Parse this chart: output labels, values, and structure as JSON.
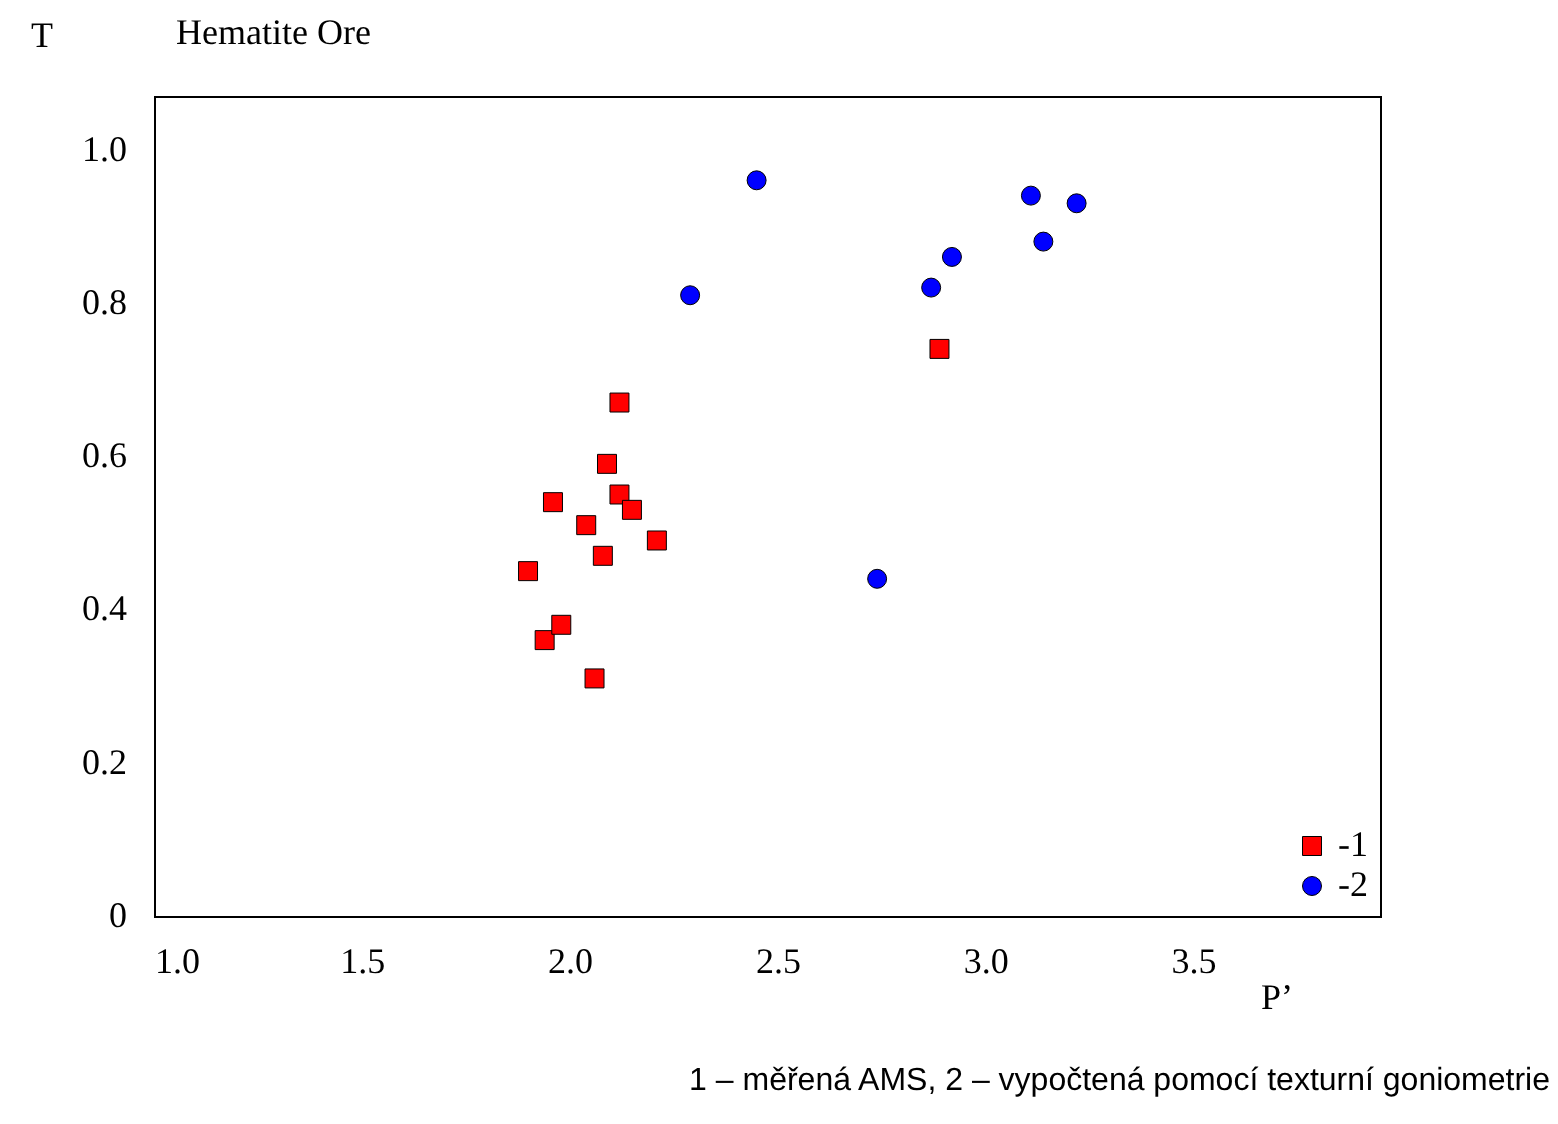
{
  "chart_data": {
    "type": "scatter",
    "title": "Hematite Ore",
    "xlabel": "P’",
    "ylabel": "T",
    "xlim": [
      1.0,
      3.95
    ],
    "ylim": [
      0,
      1.07
    ],
    "xticks": [
      {
        "value": 1,
        "label": "1.0"
      },
      1.5,
      {
        "value": 2,
        "label": "2.0"
      },
      2.5,
      {
        "value": 3,
        "label": "3.0"
      },
      3.5
    ],
    "yticks": [
      0,
      0.2,
      0.4,
      0.6,
      0.8,
      {
        "value": 1,
        "label": "1.0"
      }
    ],
    "grid": false,
    "legend": "bottom right",
    "series": [
      {
        "name": "-1",
        "color": "#ff0000",
        "marker": "square",
        "x": [
          1.9,
          1.94,
          1.96,
          1.98,
          2.04,
          2.06,
          2.08,
          2.09,
          2.12,
          2.12,
          2.15,
          2.21,
          2.89
        ],
        "values": [
          0.45,
          0.36,
          0.54,
          0.38,
          0.51,
          0.31,
          0.47,
          0.59,
          0.55,
          0.67,
          0.53,
          0.49,
          0.74
        ]
      },
      {
        "name": "-2",
        "color": "#0000ff",
        "marker": "circle",
        "x": [
          2.29,
          2.45,
          2.74,
          2.87,
          2.92,
          3.11,
          3.14,
          3.22
        ],
        "values": [
          0.81,
          0.96,
          0.44,
          0.82,
          0.86,
          0.94,
          0.88,
          0.93
        ]
      }
    ],
    "annotations": [
      "1 – měřená AMS, 2 – vypočtená pomocí texturní goniometrie"
    ]
  }
}
